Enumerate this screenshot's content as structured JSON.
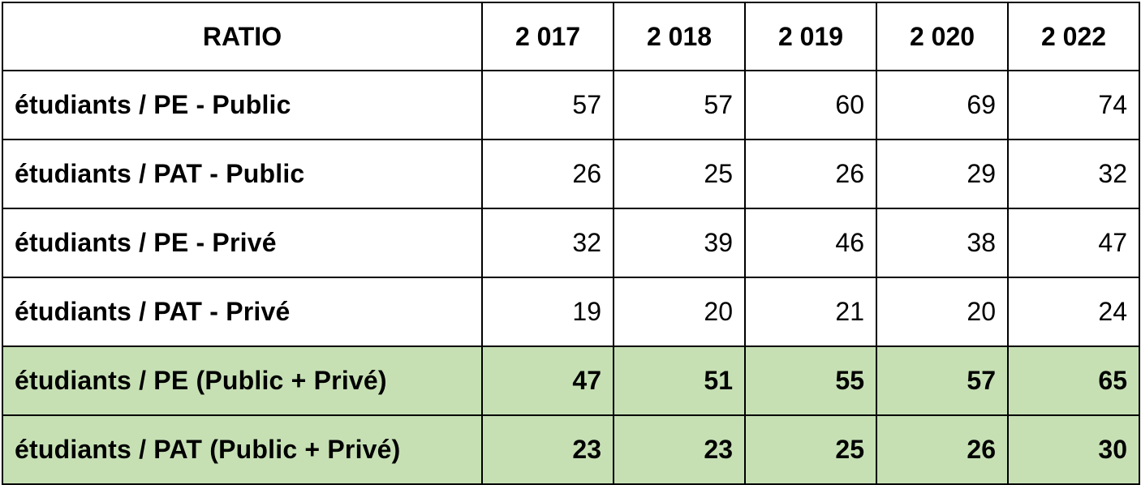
{
  "table": {
    "header": {
      "label": "RATIO",
      "years": [
        "2 017",
        "2 018",
        "2 019",
        "2 020",
        "2 022"
      ]
    },
    "highlight_color": "#c6e0b4",
    "rows": [
      {
        "label": "étudiants / PE  - Public",
        "values": [
          "57",
          "57",
          "60",
          "69",
          "74"
        ]
      },
      {
        "label": "étudiants  / PAT  - Public",
        "values": [
          "26",
          "25",
          "26",
          "29",
          "32"
        ]
      },
      {
        "label": "étudiants / PE  - Privé",
        "values": [
          "32",
          "39",
          "46",
          "38",
          "47"
        ]
      },
      {
        "label": "étudiants  / PAT  - Privé",
        "values": [
          "19",
          "20",
          "21",
          "20",
          "24"
        ]
      },
      {
        "label": "étudiants / PE (Public + Privé)",
        "values": [
          "47",
          "51",
          "55",
          "57",
          "65"
        ]
      },
      {
        "label": "étudiants / PAT (Public + Privé)",
        "values": [
          "23",
          "23",
          "25",
          "26",
          "30"
        ]
      }
    ]
  }
}
